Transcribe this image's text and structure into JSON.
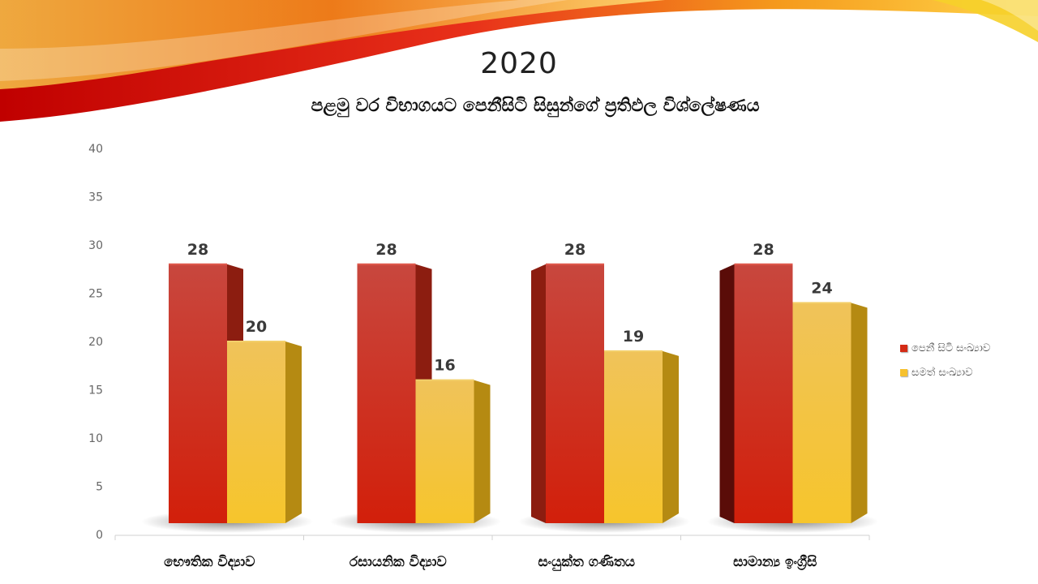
{
  "slide": {
    "title": "2020",
    "subtitle": "පළමු වර විභාගයට පෙනීසිටි සිසුන්ගේ ප්‍රතිඵල විශ්ලේෂණය"
  },
  "colors": {
    "series_red": "#d42b15",
    "series_yellow": "#f6c12f"
  },
  "chart_data": {
    "type": "bar",
    "categories": [
      "භෞතික විද්‍යාව",
      "රසායනික විද්‍යාව",
      "සංයුක්ත ගණිතය",
      "සාමාන්‍ය ඉංග්‍රීසි"
    ],
    "series": [
      {
        "name": "පෙනී සිටි සංඛ්‍යාව",
        "values": [
          28,
          28,
          28,
          28
        ],
        "color": "#d42b15"
      },
      {
        "name": "සමත් සංඛ්‍යාව",
        "values": [
          20,
          16,
          19,
          24
        ],
        "color": "#f6c12f"
      }
    ],
    "ylim": [
      0,
      40
    ],
    "yticks": [
      0,
      5,
      10,
      15,
      20,
      25,
      30,
      35,
      40
    ],
    "data_labels": true,
    "legend": "right",
    "grid": false
  }
}
